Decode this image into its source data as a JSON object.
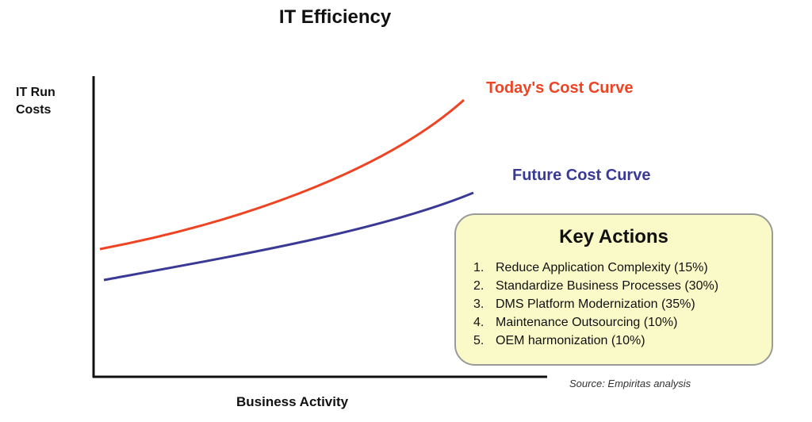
{
  "title": "IT Efficiency",
  "y_axis_label": [
    "IT Run",
    "Costs"
  ],
  "x_axis_label": "Business Activity",
  "curves": {
    "today": {
      "label": "Today's Cost Curve",
      "color": "#ef4424"
    },
    "future": {
      "label": "Future Cost Curve",
      "color": "#3a3a96"
    }
  },
  "key_actions": {
    "title": "Key Actions",
    "items": [
      {
        "num": "1.",
        "text": "Reduce Application Complexity (15%)"
      },
      {
        "num": "2.",
        "text": "Standardize Business Processes (30%)"
      },
      {
        "num": "3.",
        "text": "DMS Platform Modernization (35%)"
      },
      {
        "num": "4.",
        "text": "Maintenance Outsourcing (10%)"
      },
      {
        "num": "5.",
        "text": "OEM harmonization (10%)"
      }
    ]
  },
  "source": "Source: Empiritas analysis"
}
